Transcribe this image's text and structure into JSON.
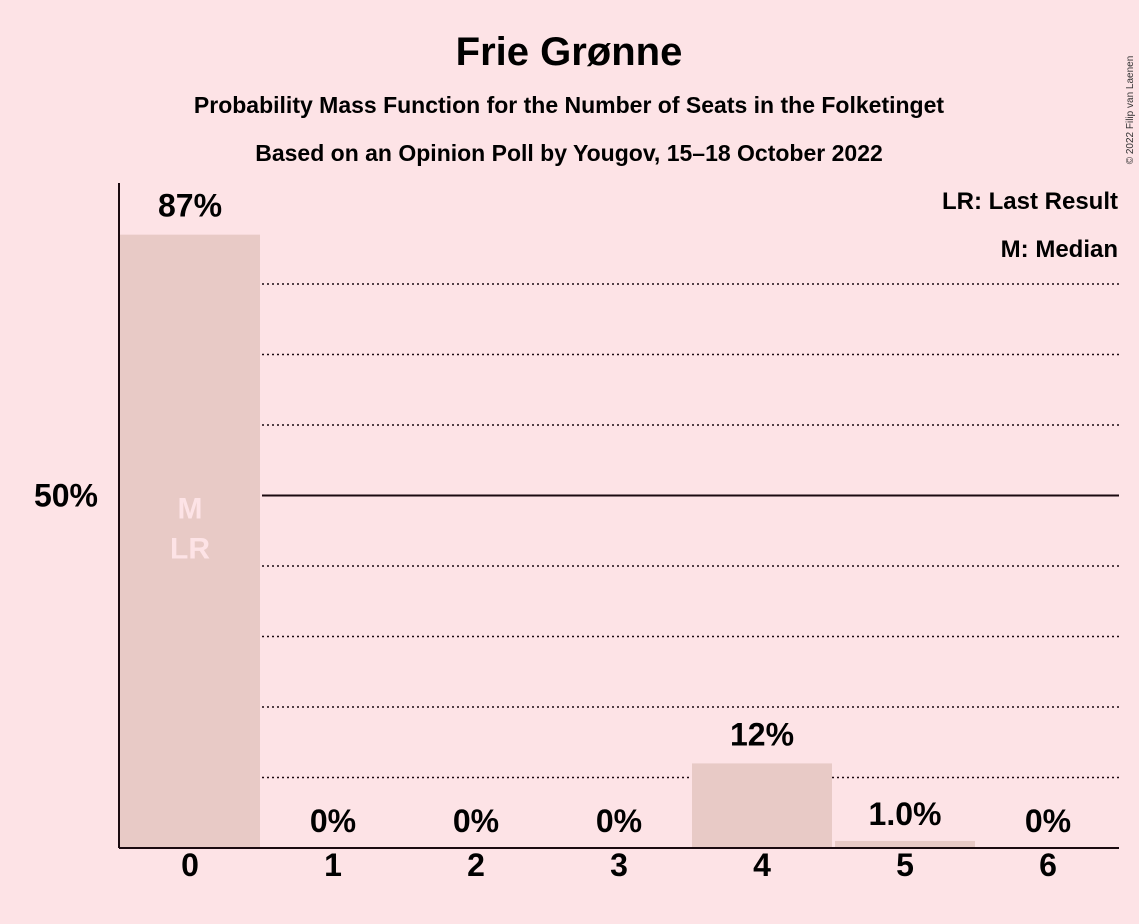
{
  "chart_data": {
    "type": "bar",
    "title": "Frie Grønne",
    "subtitle": "Probability Mass Function for the Number of Seats in the Folketinget",
    "subtitle2": "Based on an Opinion Poll by Yougov, 15–18 October 2022",
    "categories": [
      "0",
      "1",
      "2",
      "3",
      "4",
      "5",
      "6"
    ],
    "values": [
      87,
      0,
      0,
      0,
      12,
      1.0,
      0
    ],
    "value_labels": [
      "87%",
      "0%",
      "0%",
      "0%",
      "12%",
      "1.0%",
      "0%"
    ],
    "ylim": [
      0,
      94
    ],
    "ytick_label": "50%",
    "ytick_value": 50,
    "grid_values": [
      10,
      20,
      30,
      40,
      60,
      70,
      80
    ],
    "median_label": "M",
    "last_result_label": "LR",
    "median_index": 0,
    "last_result_index": 0,
    "legend": [
      "LR: Last Result",
      "M: Median"
    ],
    "legend_position": "top-right",
    "bar_color": "#e8cac6",
    "background_color": "#fde3e6",
    "copyright": "© 2022 Filip van Laenen"
  }
}
